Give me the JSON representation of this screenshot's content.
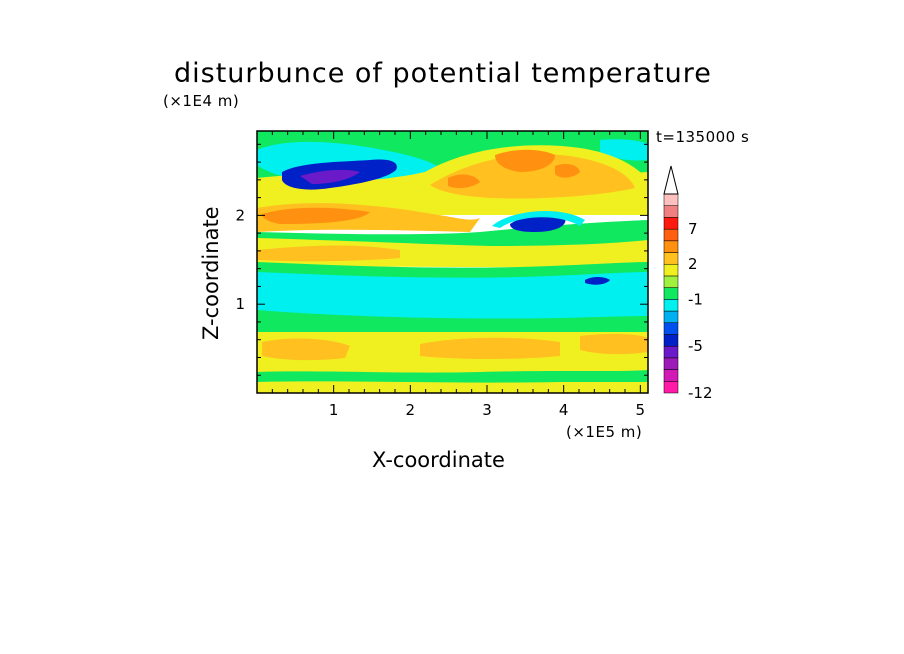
{
  "chart_data": {
    "type": "heatmap",
    "title": "disturbunce of potential temperature",
    "time_label": "t=135000 s",
    "xlabel": "X-coordinate",
    "ylabel": "Z-coordinate",
    "x_unit": "(×1E5 m)",
    "y_unit": "(×1E4 m)",
    "xlim": [
      0,
      5.1
    ],
    "ylim": [
      0,
      2.95
    ],
    "x_ticks": [
      1,
      2,
      3,
      4,
      5
    ],
    "x_tick_labels": [
      "1",
      "2",
      "3",
      "4",
      "5"
    ],
    "y_ticks": [
      1,
      2
    ],
    "y_tick_labels": [
      "1",
      "2"
    ],
    "colorbar": {
      "levels": [
        -12,
        -10,
        -8,
        -6,
        -5,
        -4,
        -3,
        -2,
        -1,
        0,
        1,
        2,
        3,
        5,
        7,
        9,
        11
      ],
      "tick_labels": [
        "-12",
        "-5",
        "-1",
        "2",
        "7"
      ],
      "tick_values": [
        -12,
        -5,
        -1,
        2,
        7
      ],
      "colors": [
        "#ff1aa8",
        "#d21ab4",
        "#9b1ab8",
        "#6a1ac8",
        "#0020c8",
        "#0050f0",
        "#00b0f0",
        "#00f0f0",
        "#10e860",
        "#a0f040",
        "#f0f020",
        "#ffc020",
        "#ff9010",
        "#ff6010",
        "#ff1a10",
        "#f08080",
        "#ffc0c0"
      ]
    },
    "regions": [
      {
        "band": [
          0.0,
          0.1
        ],
        "value": 0.5,
        "note": "green bottom fringe"
      },
      {
        "band": [
          0.1,
          0.55
        ],
        "value": 1.5,
        "note": "yellow with orange patches"
      },
      {
        "band": [
          0.55,
          0.8
        ],
        "value": 0.5
      },
      {
        "band": [
          0.8,
          1.45
        ],
        "value": -0.5,
        "note": "cyan layer"
      },
      {
        "band": [
          1.45,
          1.7
        ],
        "value": 0.5
      },
      {
        "band": [
          1.7,
          2.05
        ],
        "value": 1.5
      },
      {
        "band": [
          2.05,
          2.4
        ],
        "value": 0.5
      },
      {
        "blob": "blue",
        "x": [
          0.3,
          1.8
        ],
        "z": [
          2.25,
          2.6
        ],
        "value": -5.5
      },
      {
        "blob": "blue",
        "x": [
          3.3,
          4.0
        ],
        "z": [
          1.8,
          2.0
        ],
        "value": -5.5
      },
      {
        "blob": "orange",
        "x": [
          2.3,
          4.3
        ],
        "z": [
          2.2,
          2.7
        ],
        "value": 4
      }
    ]
  }
}
